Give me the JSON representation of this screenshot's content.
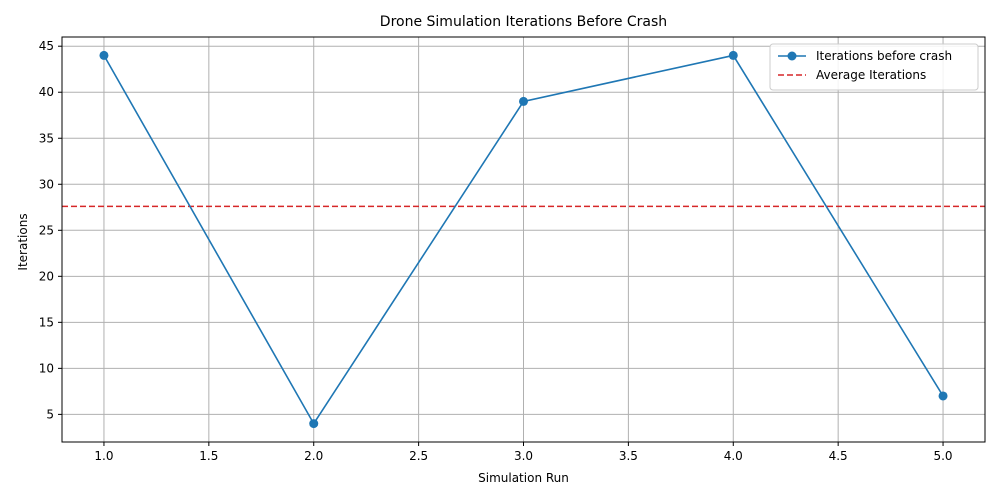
{
  "chart_data": {
    "type": "line",
    "title": "Drone Simulation Iterations Before Crash",
    "xlabel": "Simulation Run",
    "ylabel": "Iterations",
    "xlim": [
      0.8,
      5.2
    ],
    "ylim": [
      2,
      46
    ],
    "xticks": [
      1.0,
      1.5,
      2.0,
      2.5,
      3.0,
      3.5,
      4.0,
      4.5,
      5.0
    ],
    "xtick_labels": [
      "1.0",
      "1.5",
      "2.0",
      "2.5",
      "3.0",
      "3.5",
      "4.0",
      "4.5",
      "5.0"
    ],
    "yticks": [
      5,
      10,
      15,
      20,
      25,
      30,
      35,
      40,
      45
    ],
    "ytick_labels": [
      "5",
      "10",
      "15",
      "20",
      "25",
      "30",
      "35",
      "40",
      "45"
    ],
    "grid": true,
    "legend_position": "top-right",
    "series": [
      {
        "name": "Iterations before crash",
        "color": "#1f77b4",
        "marker": "circle",
        "x": [
          1,
          2,
          3,
          4,
          5
        ],
        "y": [
          44,
          4,
          39,
          44,
          7
        ]
      }
    ],
    "reference_lines": [
      {
        "name": "Average Iterations",
        "orientation": "horizontal",
        "value": 27.6,
        "color": "#d62728",
        "style": "dashed"
      }
    ]
  }
}
